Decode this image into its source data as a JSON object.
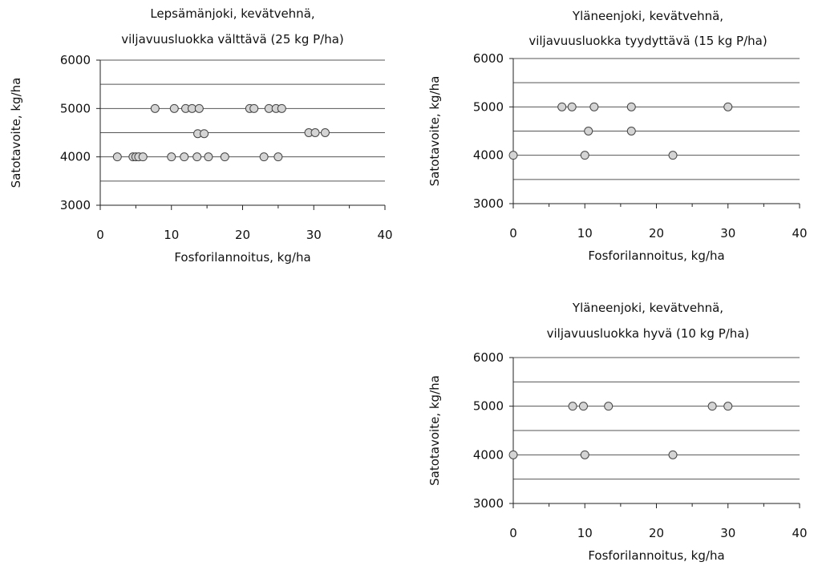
{
  "chart_data": [
    {
      "type": "scatter",
      "title": [
        "Lepsämänjoki, kevätvehnä,",
        "viljavuusluokka välttävä (25 kg P/ha)"
      ],
      "xlabel": "Fosforilannoitus, kg/ha",
      "ylabel": "Satotavoite, kg/ha",
      "xlim": [
        0,
        40
      ],
      "ylim": [
        3000,
        6000
      ],
      "xticks": [
        0,
        10,
        20,
        30,
        40
      ],
      "yticks": [
        3000,
        4000,
        5000,
        6000
      ],
      "gridlines": [
        3500,
        4000,
        4500,
        5000,
        5500,
        6000
      ],
      "points": [
        [
          7.7,
          5000
        ],
        [
          10.4,
          5000
        ],
        [
          12.0,
          5000
        ],
        [
          12.9,
          5000
        ],
        [
          13.9,
          5000
        ],
        [
          21.0,
          5000
        ],
        [
          21.6,
          5000
        ],
        [
          23.7,
          5000
        ],
        [
          24.7,
          5000
        ],
        [
          25.5,
          5000
        ],
        [
          13.7,
          4480
        ],
        [
          14.6,
          4480
        ],
        [
          29.3,
          4500
        ],
        [
          30.2,
          4500
        ],
        [
          31.6,
          4500
        ],
        [
          2.4,
          4000
        ],
        [
          4.6,
          4000
        ],
        [
          5.0,
          4000
        ],
        [
          5.4,
          4000
        ],
        [
          6.0,
          4000
        ],
        [
          10.0,
          4000
        ],
        [
          11.8,
          4000
        ],
        [
          13.6,
          4000
        ],
        [
          15.2,
          4000
        ],
        [
          17.5,
          4000
        ],
        [
          23.0,
          4000
        ],
        [
          25.0,
          4000
        ]
      ]
    },
    {
      "type": "scatter",
      "title": [
        "Yläneenjoki, kevätvehnä,",
        "viljavuusluokka tyydyttävä (15 kg P/ha)"
      ],
      "xlabel": "Fosforilannoitus, kg/ha",
      "ylabel": "Satotavoite, kg/ha",
      "xlim": [
        0,
        40
      ],
      "ylim": [
        3000,
        6000
      ],
      "xticks": [
        0,
        10,
        20,
        30,
        40
      ],
      "yticks": [
        3000,
        4000,
        5000,
        6000
      ],
      "gridlines": [
        3500,
        4000,
        4500,
        5000,
        5500,
        6000
      ],
      "points": [
        [
          6.8,
          5000
        ],
        [
          8.2,
          5000
        ],
        [
          11.3,
          5000
        ],
        [
          16.5,
          5000
        ],
        [
          30.0,
          5000
        ],
        [
          10.5,
          4500
        ],
        [
          16.5,
          4500
        ],
        [
          0.0,
          4000
        ],
        [
          10.0,
          4000
        ],
        [
          22.3,
          4000
        ]
      ]
    },
    {
      "type": "scatter",
      "title": [
        "Yläneenjoki, kevätvehnä,",
        "viljavuusluokka hyvä (10 kg P/ha)"
      ],
      "xlabel": "Fosforilannoitus, kg/ha",
      "ylabel": "Satotavoite, kg/ha",
      "xlim": [
        0,
        40
      ],
      "ylim": [
        3000,
        6000
      ],
      "xticks": [
        0,
        10,
        20,
        30,
        40
      ],
      "yticks": [
        3000,
        4000,
        5000,
        6000
      ],
      "gridlines": [
        3500,
        4000,
        4500,
        5000,
        5500,
        6000
      ],
      "points": [
        [
          8.3,
          5000
        ],
        [
          9.8,
          5000
        ],
        [
          13.3,
          5000
        ],
        [
          27.8,
          5000
        ],
        [
          30.0,
          5000
        ],
        [
          0.0,
          4000
        ],
        [
          10.0,
          4000
        ],
        [
          22.3,
          4000
        ]
      ]
    }
  ]
}
